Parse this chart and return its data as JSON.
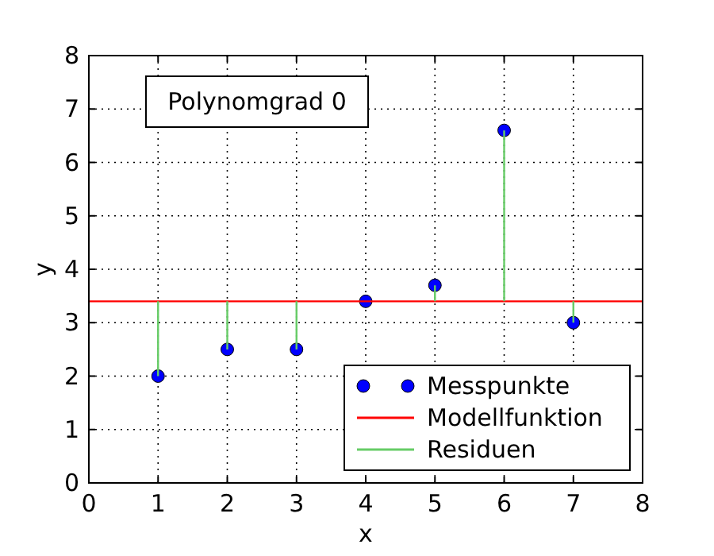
{
  "chart_data": {
    "type": "scatter",
    "xlabel": "x",
    "ylabel": "y",
    "xlim": [
      0,
      8
    ],
    "ylim": [
      0,
      8
    ],
    "xticks": [
      0,
      1,
      2,
      3,
      4,
      5,
      6,
      7,
      8
    ],
    "yticks": [
      0,
      1,
      2,
      3,
      4,
      5,
      6,
      7,
      8
    ],
    "grid": true,
    "legend": "bottom right",
    "annotations": [
      "Polynomgrad 0"
    ],
    "series": [
      {
        "name": "Messpunkte",
        "marker": "circle",
        "color": "#0000ff",
        "x": [
          1,
          2,
          3,
          4,
          5,
          6,
          7
        ],
        "values": [
          2,
          2.5,
          2.5,
          3.4,
          3.7,
          6.6,
          3.0
        ]
      },
      {
        "name": "Modellfunktion",
        "type": "line",
        "color": "#ff0000",
        "x": [
          0,
          8
        ],
        "values": [
          3.4,
          3.4
        ]
      },
      {
        "name": "Residuen",
        "type": "line",
        "color": "#66cc66",
        "x": [
          1,
          1,
          null,
          2,
          2,
          null,
          3,
          3,
          null,
          5,
          5,
          null,
          6,
          6,
          null,
          7,
          7
        ],
        "values": [
          2,
          3.4,
          null,
          2.5,
          3.4,
          null,
          2.5,
          3.4,
          null,
          3.7,
          3.4,
          null,
          6.6,
          3.4,
          null,
          3.0,
          3.4
        ]
      }
    ]
  }
}
